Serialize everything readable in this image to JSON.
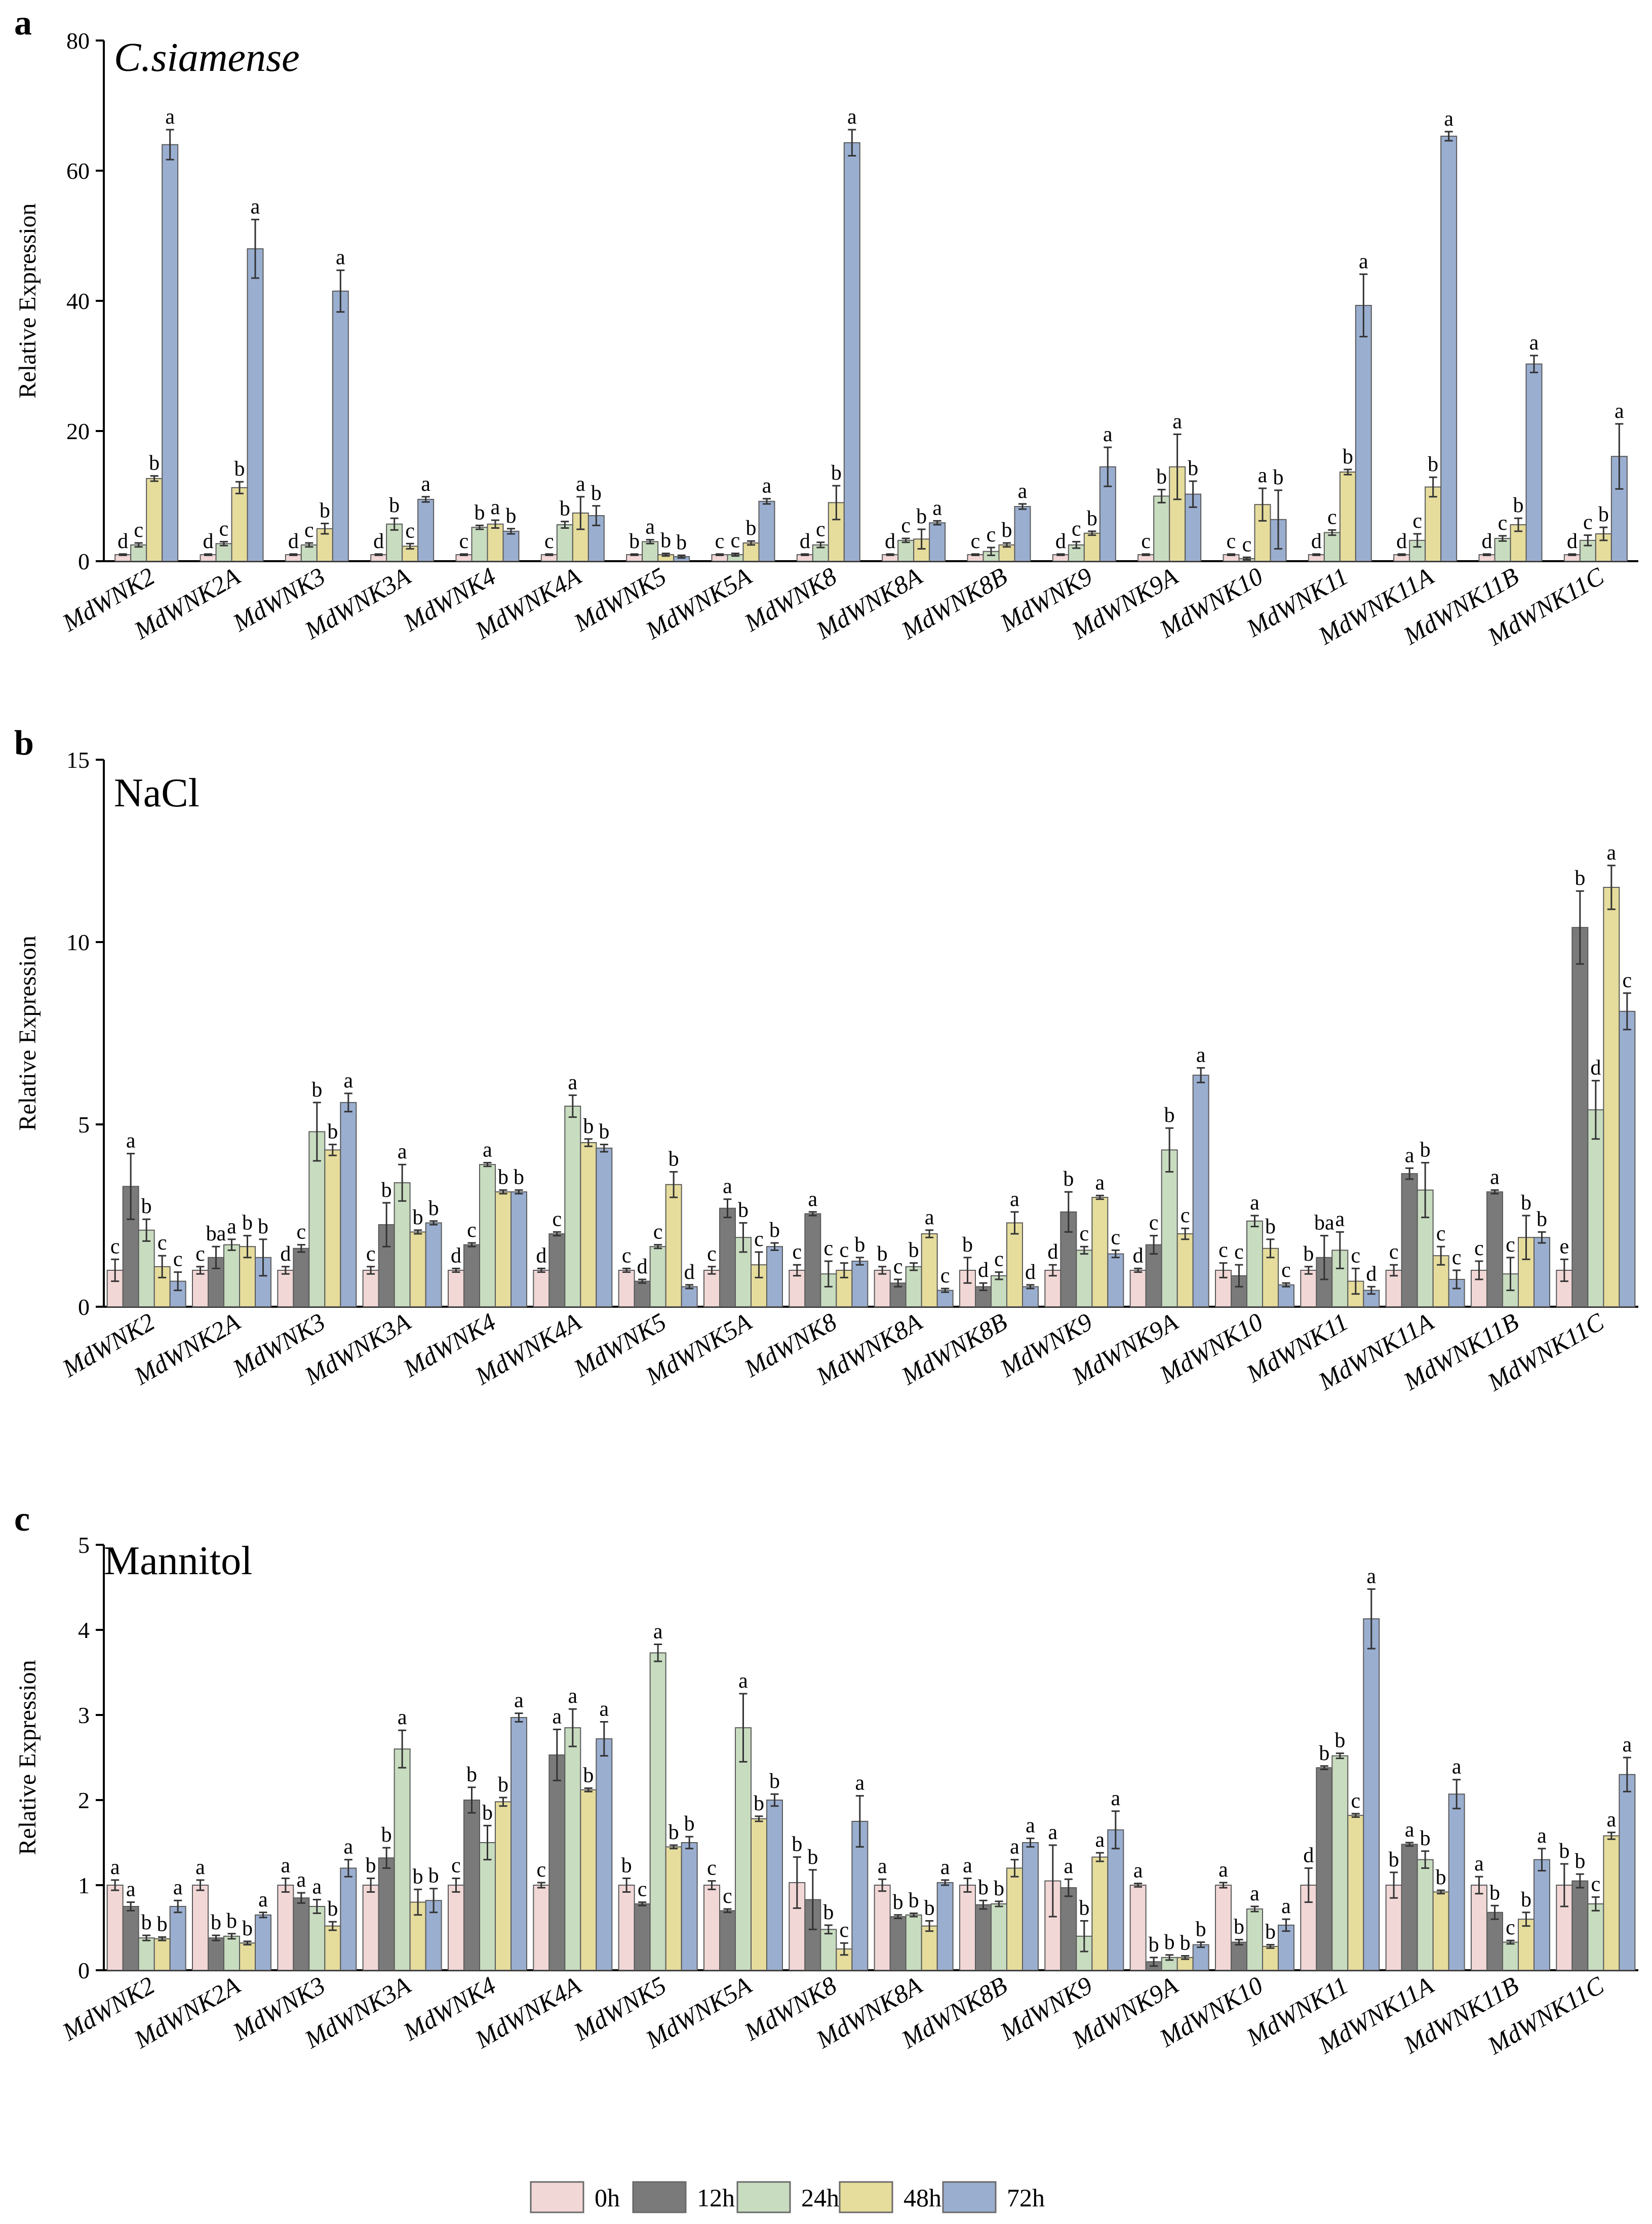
{
  "figure": {
    "legend_entries": [
      "0h",
      "12h",
      "24h",
      "48h",
      "72h"
    ],
    "series_colors": [
      "#f2d7d7",
      "#7a7a7a",
      "#c8dcc0",
      "#e6dc9c",
      "#9aaed0"
    ]
  },
  "chart_data": [
    {
      "type": "bar",
      "panel_label": "a",
      "title": "C.siamense",
      "title_italic": true,
      "ylabel": "Relative Expression",
      "xlabel": "",
      "ylim": [
        0,
        80
      ],
      "yticks": [
        0,
        20,
        40,
        60,
        80
      ],
      "categories": [
        "MdWNK2",
        "MdWNK2A",
        "MdWNK3",
        "MdWNK3A",
        "MdWNK4",
        "MdWNK4A",
        "MdWNK5",
        "MdWNK5A",
        "MdWNK8",
        "MdWNK8A",
        "MdWNK8B",
        "MdWNK9",
        "MdWNK9A",
        "MdWNK10",
        "MdWNK11",
        "MdWNK11A",
        "MdWNK11B",
        "MdWNK11C"
      ],
      "series_names": [
        "0h",
        "24h",
        "48h",
        "72h"
      ],
      "values": [
        [
          1,
          2.5,
          12.7,
          64
        ],
        [
          1,
          2.7,
          11.3,
          48
        ],
        [
          1,
          2.5,
          5,
          41.5
        ],
        [
          1,
          5.7,
          2.3,
          9.5
        ],
        [
          1,
          5.2,
          5.7,
          4.6
        ],
        [
          1,
          5.6,
          7.4,
          7
        ],
        [
          1,
          3,
          1,
          0.7
        ],
        [
          1,
          1,
          2.8,
          9.2
        ],
        [
          1,
          2.5,
          9,
          64.3
        ],
        [
          1,
          3.2,
          3.4,
          5.9
        ],
        [
          1,
          1.5,
          2.5,
          8.4
        ],
        [
          1,
          2.5,
          4.3,
          14.5
        ],
        [
          1,
          10,
          14.5,
          10.3
        ],
        [
          1,
          0.4,
          8.7,
          6.4
        ],
        [
          1,
          4.4,
          13.7,
          39.3
        ],
        [
          1,
          3.2,
          11.4,
          65.3
        ],
        [
          1,
          3.5,
          5.6,
          30.3
        ],
        [
          1,
          3.2,
          4.2,
          16.1
        ]
      ],
      "errors": [
        [
          0.1,
          0.3,
          0.4,
          2.3
        ],
        [
          0.1,
          0.3,
          0.9,
          4.5
        ],
        [
          0.1,
          0.3,
          0.8,
          3.2
        ],
        [
          0.1,
          0.9,
          0.4,
          0.4
        ],
        [
          0.1,
          0.3,
          0.6,
          0.4
        ],
        [
          0.1,
          0.5,
          2.5,
          1.5
        ],
        [
          0.1,
          0.3,
          0.2,
          0.2
        ],
        [
          0.1,
          0.2,
          0.3,
          0.4
        ],
        [
          0.1,
          0.4,
          2.6,
          2
        ],
        [
          0.1,
          0.3,
          1.5,
          0.3
        ],
        [
          0.1,
          0.6,
          0.3,
          0.4
        ],
        [
          0.1,
          0.5,
          0.3,
          3
        ],
        [
          0.1,
          1,
          5,
          2
        ],
        [
          0.1,
          0.2,
          2.5,
          4.5
        ],
        [
          0.1,
          0.4,
          0.4,
          4.8
        ],
        [
          0.1,
          1,
          1.5,
          0.7
        ],
        [
          0.1,
          0.4,
          1,
          1.3
        ],
        [
          0.1,
          0.8,
          1,
          5
        ]
      ],
      "letters": [
        [
          "d",
          "c",
          "b",
          "a"
        ],
        [
          "d",
          "c",
          "b",
          "a"
        ],
        [
          "d",
          "c",
          "b",
          "a"
        ],
        [
          "d",
          "b",
          "c",
          "a"
        ],
        [
          "c",
          "b",
          "a",
          "b"
        ],
        [
          "c",
          "b",
          "a",
          "b"
        ],
        [
          "b",
          "a",
          "b",
          "b"
        ],
        [
          "c",
          "c",
          "b",
          "a"
        ],
        [
          "d",
          "c",
          "b",
          "a"
        ],
        [
          "d",
          "c",
          "b",
          "a"
        ],
        [
          "c",
          "c",
          "b",
          "a"
        ],
        [
          "d",
          "c",
          "b",
          "a"
        ],
        [
          "c",
          "b",
          "a",
          "b"
        ],
        [
          "c",
          "c",
          "a",
          "b"
        ],
        [
          "d",
          "c",
          "b",
          "a"
        ],
        [
          "d",
          "c",
          "b",
          "a"
        ],
        [
          "d",
          "c",
          "b",
          "a"
        ],
        [
          "d",
          "c",
          "b",
          "a"
        ]
      ]
    },
    {
      "type": "bar",
      "panel_label": "b",
      "title": "NaCl",
      "title_italic": false,
      "ylabel": "Relative Expression",
      "xlabel": "",
      "ylim": [
        0,
        15
      ],
      "yticks": [
        0,
        5,
        10,
        15
      ],
      "categories": [
        "MdWNK2",
        "MdWNK2A",
        "MdWNK3",
        "MdWNK3A",
        "MdWNK4",
        "MdWNK4A",
        "MdWNK5",
        "MdWNK5A",
        "MdWNK8",
        "MdWNK8A",
        "MdWNK8B",
        "MdWNK9",
        "MdWNK9A",
        "MdWNK10",
        "MdWNK11",
        "MdWNK11A",
        "MdWNK11B",
        "MdWNK11C"
      ],
      "series_names": [
        "0h",
        "12h",
        "24h",
        "48h",
        "72h"
      ],
      "values": [
        [
          1,
          3.3,
          2.1,
          1.1,
          0.7
        ],
        [
          1,
          1.35,
          1.7,
          1.65,
          1.35
        ],
        [
          1,
          1.6,
          4.8,
          4.3,
          5.6
        ],
        [
          1,
          2.25,
          3.4,
          2.05,
          2.3
        ],
        [
          1,
          1.7,
          3.9,
          3.15,
          3.15
        ],
        [
          1,
          2,
          5.5,
          4.5,
          4.35
        ],
        [
          1,
          0.7,
          1.65,
          3.35,
          0.55
        ],
        [
          1,
          2.7,
          1.9,
          1.15,
          1.65
        ],
        [
          1,
          2.55,
          0.9,
          1,
          1.25
        ],
        [
          1,
          0.65,
          1.1,
          2,
          0.45
        ],
        [
          1,
          0.55,
          0.85,
          2.3,
          0.55
        ],
        [
          1,
          2.6,
          1.55,
          3,
          1.45
        ],
        [
          1,
          1.7,
          4.3,
          2,
          6.35
        ],
        [
          1,
          0.85,
          2.35,
          1.6,
          0.6
        ],
        [
          1,
          1.35,
          1.55,
          0.7,
          0.45
        ],
        [
          1,
          3.65,
          3.2,
          1.4,
          0.75
        ],
        [
          1,
          3.15,
          0.9,
          1.9,
          1.9
        ],
        [
          1,
          10.4,
          5.4,
          11.5,
          8.1
        ]
      ],
      "errors": [
        [
          0.3,
          0.9,
          0.3,
          0.3,
          0.25
        ],
        [
          0.1,
          0.3,
          0.15,
          0.3,
          0.5
        ],
        [
          0.1,
          0.1,
          0.8,
          0.15,
          0.25
        ],
        [
          0.1,
          0.6,
          0.5,
          0.05,
          0.05
        ],
        [
          0.05,
          0.05,
          0.05,
          0.05,
          0.05
        ],
        [
          0.05,
          0.05,
          0.3,
          0.1,
          0.1
        ],
        [
          0.05,
          0.05,
          0.05,
          0.35,
          0.05
        ],
        [
          0.1,
          0.25,
          0.4,
          0.35,
          0.1
        ],
        [
          0.15,
          0.05,
          0.35,
          0.2,
          0.1
        ],
        [
          0.1,
          0.1,
          0.1,
          0.1,
          0.05
        ],
        [
          0.35,
          0.1,
          0.1,
          0.3,
          0.05
        ],
        [
          0.15,
          0.55,
          0.1,
          0.05,
          0.1
        ],
        [
          0.05,
          0.25,
          0.6,
          0.15,
          0.2
        ],
        [
          0.2,
          0.3,
          0.15,
          0.25,
          0.05
        ],
        [
          0.1,
          0.6,
          0.5,
          0.35,
          0.1
        ],
        [
          0.15,
          0.15,
          0.75,
          0.25,
          0.25
        ],
        [
          0.25,
          0.05,
          0.45,
          0.6,
          0.15
        ],
        [
          0.3,
          1,
          0.8,
          0.6,
          0.5
        ]
      ],
      "letters": [
        [
          "c",
          "a",
          "b",
          "c",
          "c"
        ],
        [
          "c",
          "ba",
          "a",
          "b",
          "b"
        ],
        [
          "d",
          "c",
          "b",
          "b",
          "a"
        ],
        [
          "c",
          "b",
          "a",
          "b",
          "b"
        ],
        [
          "d",
          "c",
          "a",
          "b",
          "b"
        ],
        [
          "d",
          "c",
          "a",
          "b",
          "b"
        ],
        [
          "c",
          "d",
          "c",
          "b",
          "d"
        ],
        [
          "c",
          "a",
          "b",
          "c",
          "b"
        ],
        [
          "c",
          "a",
          "c",
          "c",
          "b"
        ],
        [
          "b",
          "c",
          "b",
          "a",
          "c"
        ],
        [
          "b",
          "d",
          "c",
          "a",
          "d"
        ],
        [
          "d",
          "b",
          "c",
          "a",
          "c"
        ],
        [
          "d",
          "c",
          "b",
          "c",
          "a"
        ],
        [
          "c",
          "c",
          "a",
          "b",
          "c"
        ],
        [
          "b",
          "ba",
          "a",
          "c",
          "d"
        ],
        [
          "c",
          "a",
          "b",
          "c",
          "c"
        ],
        [
          "c",
          "a",
          "c",
          "b",
          "b"
        ],
        [
          "e",
          "b",
          "d",
          "a",
          "c"
        ]
      ]
    },
    {
      "type": "bar",
      "panel_label": "c",
      "title": "Mannitol",
      "title_italic": false,
      "ylabel": "Relative Expression",
      "xlabel": "",
      "ylim": [
        0,
        5
      ],
      "yticks": [
        0,
        1,
        2,
        3,
        4,
        5
      ],
      "categories": [
        "MdWNK2",
        "MdWNK2A",
        "MdWNK3",
        "MdWNK3A",
        "MdWNK4",
        "MdWNK4A",
        "MdWNK5",
        "MdWNK5A",
        "MdWNK8",
        "MdWNK8A",
        "MdWNK8B",
        "MdWNK9",
        "MdWNK9A",
        "MdWNK10",
        "MdWNK11",
        "MdWNK11A",
        "MdWNK11B",
        "MdWNK11C"
      ],
      "series_names": [
        "0h",
        "12h",
        "24h",
        "48h",
        "72h"
      ],
      "values": [
        [
          1,
          0.75,
          0.38,
          0.37,
          0.75
        ],
        [
          1,
          0.38,
          0.4,
          0.32,
          0.65
        ],
        [
          1,
          0.85,
          0.75,
          0.52,
          1.2
        ],
        [
          1,
          1.32,
          2.6,
          0.8,
          0.82
        ],
        [
          1,
          2,
          1.5,
          1.98,
          2.97
        ],
        [
          1,
          2.53,
          2.85,
          2.12,
          2.72
        ],
        [
          1,
          0.78,
          3.73,
          1.45,
          1.5
        ],
        [
          1,
          0.7,
          2.85,
          1.78,
          2
        ],
        [
          1.03,
          0.83,
          0.48,
          0.25,
          1.75
        ],
        [
          1,
          0.63,
          0.65,
          0.52,
          1.03
        ],
        [
          1,
          0.77,
          0.78,
          1.2,
          1.5
        ],
        [
          1.05,
          0.97,
          0.4,
          1.33,
          1.65
        ],
        [
          1,
          0.1,
          0.15,
          0.15,
          0.3
        ],
        [
          1,
          0.33,
          0.72,
          0.28,
          0.53
        ],
        [
          1,
          2.38,
          2.52,
          1.82,
          4.13
        ],
        [
          1,
          1.48,
          1.3,
          0.92,
          2.07
        ],
        [
          1,
          0.68,
          0.33,
          0.6,
          1.3
        ],
        [
          1,
          1.05,
          0.78,
          1.58,
          2.3
        ]
      ],
      "errors": [
        [
          0.06,
          0.05,
          0.03,
          0.02,
          0.07
        ],
        [
          0.06,
          0.03,
          0.03,
          0.02,
          0.03
        ],
        [
          0.08,
          0.06,
          0.08,
          0.05,
          0.1
        ],
        [
          0.08,
          0.12,
          0.22,
          0.15,
          0.14
        ],
        [
          0.08,
          0.15,
          0.2,
          0.05,
          0.05
        ],
        [
          0.03,
          0.3,
          0.22,
          0.02,
          0.2
        ],
        [
          0.08,
          0.02,
          0.1,
          0.02,
          0.07
        ],
        [
          0.05,
          0.02,
          0.4,
          0.03,
          0.07
        ],
        [
          0.3,
          0.35,
          0.05,
          0.07,
          0.3
        ],
        [
          0.07,
          0.02,
          0.02,
          0.06,
          0.03
        ],
        [
          0.08,
          0.05,
          0.03,
          0.1,
          0.05
        ],
        [
          0.42,
          0.1,
          0.18,
          0.05,
          0.22
        ],
        [
          0.02,
          0.05,
          0.03,
          0.02,
          0.03
        ],
        [
          0.03,
          0.03,
          0.03,
          0.02,
          0.07
        ],
        [
          0.2,
          0.02,
          0.03,
          0.02,
          0.35
        ],
        [
          0.15,
          0.02,
          0.1,
          0.02,
          0.17
        ],
        [
          0.1,
          0.08,
          0.02,
          0.08,
          0.13
        ],
        [
          0.25,
          0.08,
          0.08,
          0.04,
          0.2
        ]
      ],
      "letters": [
        [
          "a",
          "a",
          "b",
          "b",
          "a"
        ],
        [
          "a",
          "b",
          "b",
          "b",
          "a"
        ],
        [
          "a",
          "a",
          "a",
          "b",
          "a"
        ],
        [
          "b",
          "b",
          "a",
          "b",
          "b"
        ],
        [
          "c",
          "b",
          "b",
          "b",
          "a"
        ],
        [
          "c",
          "a",
          "a",
          "b",
          "a"
        ],
        [
          "b",
          "c",
          "a",
          "b",
          "b"
        ],
        [
          "c",
          "c",
          "a",
          "b",
          "b"
        ],
        [
          "b",
          "b",
          "b",
          "c",
          "a"
        ],
        [
          "a",
          "b",
          "b",
          "b",
          "a"
        ],
        [
          "a",
          "b",
          "b",
          "a",
          "a"
        ],
        [
          "a",
          "a",
          "b",
          "a",
          "a"
        ],
        [
          "a",
          "b",
          "b",
          "b",
          "b"
        ],
        [
          "a",
          "b",
          "a",
          "b",
          "a"
        ],
        [
          "d",
          "b",
          "b",
          "c",
          "a"
        ],
        [
          "b",
          "a",
          "b",
          "b",
          "a"
        ],
        [
          "a",
          "b",
          "c",
          "b",
          "a"
        ],
        [
          "b",
          "b",
          "c",
          "a",
          "a"
        ]
      ]
    }
  ]
}
